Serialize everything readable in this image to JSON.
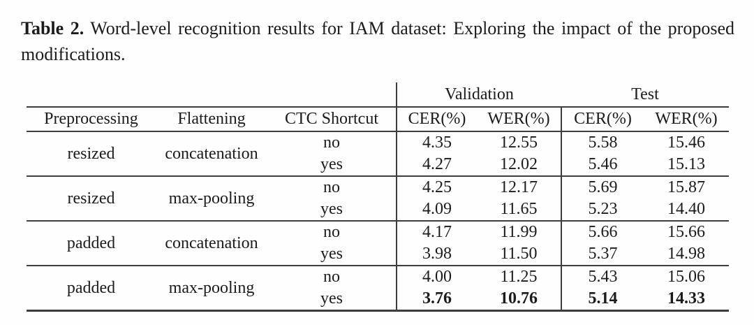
{
  "caption": {
    "label": "Table 2.",
    "text": "Word-level recognition results for IAM dataset: Exploring the impact of the proposed modifications."
  },
  "table": {
    "group_headers": {
      "validation": "Validation",
      "test": "Test"
    },
    "columns": {
      "preprocessing": "Preprocessing",
      "flattening": "Flattening",
      "ctc_shortcut": "CTC Shortcut",
      "val_cer": "CER(%)",
      "val_wer": "WER(%)",
      "test_cer": "CER(%)",
      "test_wer": "WER(%)"
    },
    "groups": [
      {
        "preprocessing": "resized",
        "flattening": "concatenation",
        "rows": [
          {
            "ctc_shortcut": "no",
            "val_cer": "4.35",
            "val_wer": "12.55",
            "test_cer": "5.58",
            "test_wer": "15.46"
          },
          {
            "ctc_shortcut": "yes",
            "val_cer": "4.27",
            "val_wer": "12.02",
            "test_cer": "5.46",
            "test_wer": "15.13"
          }
        ]
      },
      {
        "preprocessing": "resized",
        "flattening": "max-pooling",
        "rows": [
          {
            "ctc_shortcut": "no",
            "val_cer": "4.25",
            "val_wer": "12.17",
            "test_cer": "5.69",
            "test_wer": "15.87"
          },
          {
            "ctc_shortcut": "yes",
            "val_cer": "4.09",
            "val_wer": "11.65",
            "test_cer": "5.23",
            "test_wer": "14.40"
          }
        ]
      },
      {
        "preprocessing": "padded",
        "flattening": "concatenation",
        "rows": [
          {
            "ctc_shortcut": "no",
            "val_cer": "4.17",
            "val_wer": "11.99",
            "test_cer": "5.66",
            "test_wer": "15.66"
          },
          {
            "ctc_shortcut": "yes",
            "val_cer": "3.98",
            "val_wer": "11.50",
            "test_cer": "5.37",
            "test_wer": "14.98"
          }
        ]
      },
      {
        "preprocessing": "padded",
        "flattening": "max-pooling",
        "rows": [
          {
            "ctc_shortcut": "no",
            "val_cer": "4.00",
            "val_wer": "11.25",
            "test_cer": "5.43",
            "test_wer": "15.06"
          },
          {
            "ctc_shortcut": "yes",
            "val_cer": "3.76",
            "val_wer": "10.76",
            "test_cer": "5.14",
            "test_wer": "14.33"
          }
        ]
      }
    ]
  },
  "colors": {
    "background": "#fefefe",
    "text": "#1b1b1b",
    "rule": "#3d3d3d"
  }
}
